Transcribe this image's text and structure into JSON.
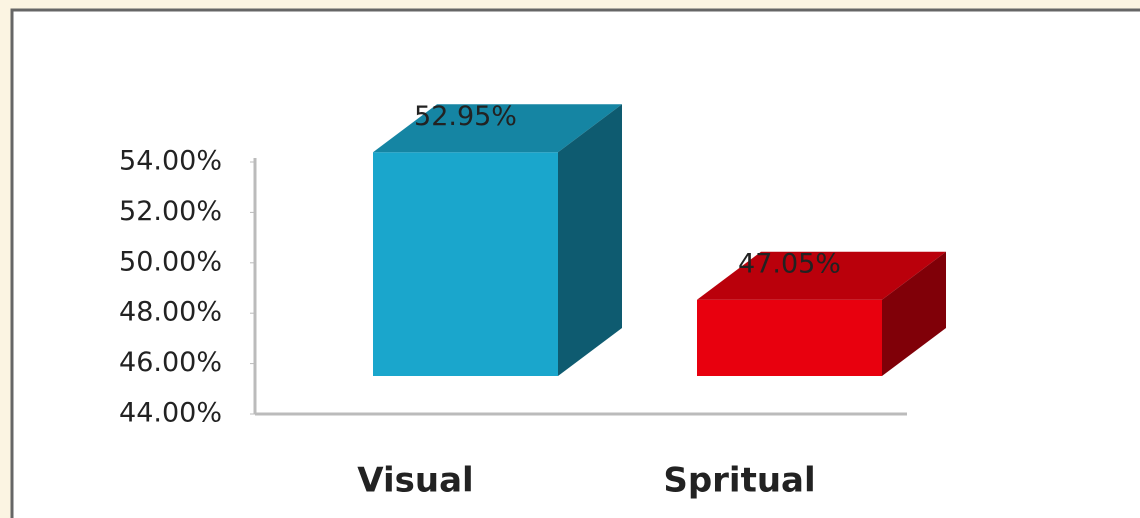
{
  "chart_data": {
    "type": "bar3d",
    "categories": [
      "Visual",
      "Spritual"
    ],
    "values": [
      52.95,
      47.05
    ],
    "value_labels": [
      "52.95%",
      "47.05%"
    ],
    "colors": [
      "#1aa6cc",
      "#e8000e"
    ],
    "ylim": [
      44,
      54
    ],
    "yticks": [
      {
        "value": 44,
        "label": "44.00%"
      },
      {
        "value": 46,
        "label": "46.00%"
      },
      {
        "value": 48,
        "label": "48.00%"
      },
      {
        "value": 50,
        "label": "50.00%"
      },
      {
        "value": 52,
        "label": "52.00%"
      },
      {
        "value": 54,
        "label": "54.00%"
      }
    ]
  }
}
